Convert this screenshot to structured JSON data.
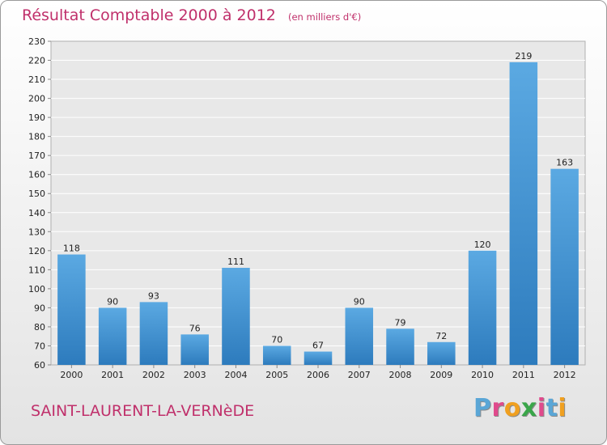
{
  "title": "Résultat Comptable 2000 à 2012",
  "unit_note": "(en milliers d'€)",
  "commune": "SAINT-LAURENT-LA-VERNèDE",
  "brand": {
    "text": "Proxiti",
    "letter_colors": [
      "#5aa6d6",
      "#e04a8c",
      "#f0a020",
      "#3aa64a",
      "#e04a8c",
      "#5aa6d6",
      "#f0a020"
    ]
  },
  "colors": {
    "bar_light": "#5ba9e2",
    "bar_dark": "#2d7bbd",
    "text": "#222222",
    "accent": "#c0306b",
    "grid": "#ffffff"
  },
  "chart_data": {
    "type": "bar",
    "title": "Résultat Comptable 2000 à 2012",
    "xlabel": "",
    "ylabel": "",
    "categories": [
      "2000",
      "2001",
      "2002",
      "2003",
      "2004",
      "2005",
      "2006",
      "2007",
      "2008",
      "2009",
      "2010",
      "2011",
      "2012"
    ],
    "values": [
      118,
      90,
      93,
      76,
      111,
      70,
      67,
      90,
      79,
      72,
      120,
      219,
      163
    ],
    "ylim": [
      60,
      230
    ],
    "yticks": [
      60,
      70,
      80,
      90,
      100,
      110,
      120,
      130,
      140,
      150,
      160,
      170,
      180,
      190,
      200,
      210,
      220,
      230
    ],
    "data_labels": true,
    "grid": true
  }
}
